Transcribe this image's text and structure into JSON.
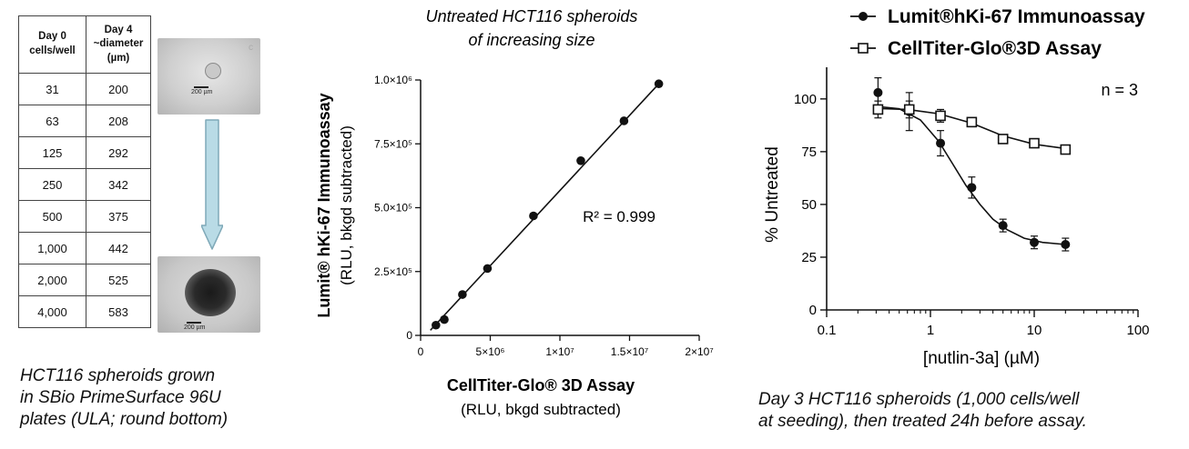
{
  "panel_a": {
    "table_headers": [
      "Day 0",
      "cells/well",
      "Day 4",
      "~diameter",
      "(µm)"
    ],
    "rows": [
      {
        "cells": "31",
        "diameter": "200"
      },
      {
        "cells": "63",
        "diameter": "208"
      },
      {
        "cells": "125",
        "diameter": "292"
      },
      {
        "cells": "250",
        "diameter": "342"
      },
      {
        "cells": "500",
        "diameter": "375"
      },
      {
        "cells": "1,000",
        "diameter": "442"
      },
      {
        "cells": "2,000",
        "diameter": "525"
      },
      {
        "cells": "4,000",
        "diameter": "583"
      }
    ],
    "scale_label_top": "200 µm",
    "scale_label_bottom": "200 µm",
    "arrow_color": "#b9dbe6",
    "caption": [
      "HCT116 spheroids grown",
      "in SBio PrimeSurface 96U",
      "plates (ULA; round bottom)"
    ]
  },
  "chart_data": [
    {
      "type": "scatter",
      "title": [
        "Untreated HCT116 spheroids",
        "of increasing size"
      ],
      "ylabel_line1": "Lumit® hKi-67 Immunoassay",
      "ylabel_line2": "(RLU, bkgd subtracted)",
      "xlabel_line1": "CellTiter-Glo® 3D Assay",
      "xlabel_line2": "(RLU, bkgd subtracted)",
      "xlim": [
        0,
        20000000
      ],
      "ylim": [
        0,
        1000000
      ],
      "xticks": [
        0,
        5000000,
        10000000,
        15000000,
        20000000
      ],
      "xtick_labels": [
        "0",
        "5×10⁶",
        "1×10⁷",
        "1.5×10⁷",
        "2×10⁷"
      ],
      "yticks": [
        0,
        250000,
        500000,
        750000,
        1000000
      ],
      "ytick_labels": [
        "0",
        "2.5×10⁵",
        "5.0×10⁵",
        "7.5×10⁵",
        "1.0×10⁶"
      ],
      "annotation": "R² = 0.999",
      "points": [
        {
          "x": 1100000,
          "y": 40000
        },
        {
          "x": 1700000,
          "y": 62000
        },
        {
          "x": 3000000,
          "y": 160000
        },
        {
          "x": 4800000,
          "y": 262000
        },
        {
          "x": 8100000,
          "y": 468000
        },
        {
          "x": 11500000,
          "y": 684000
        },
        {
          "x": 14600000,
          "y": 840000
        },
        {
          "x": 17100000,
          "y": 985000
        }
      ],
      "fit_line": [
        {
          "x": 700000,
          "y": 20000
        },
        {
          "x": 17100000,
          "y": 985000
        }
      ]
    },
    {
      "type": "line",
      "xscale": "log",
      "xlabel": "[nutlin-3a] (µM)",
      "ylabel": "% Untreated",
      "xlim": [
        0.1,
        100
      ],
      "ylim": [
        0,
        115
      ],
      "xticks": [
        0.1,
        1,
        10,
        100
      ],
      "xtick_labels": [
        "0.1",
        "1",
        "10",
        "100"
      ],
      "yticks": [
        0,
        25,
        50,
        75,
        100
      ],
      "ytick_labels": [
        "0",
        "25",
        "50",
        "75",
        "100"
      ],
      "annotation": "n = 3",
      "legend_position": "top",
      "series": [
        {
          "name": "Lumit®hKi-67 Immunoassay",
          "marker": "filled-circle",
          "x": [
            0.3125,
            0.625,
            1.25,
            2.5,
            5,
            10,
            20
          ],
          "y": [
            103,
            94,
            79,
            58,
            40,
            32,
            31
          ],
          "err": [
            7,
            9,
            6,
            5,
            3,
            3,
            3
          ],
          "curve": [
            [
              0.3,
              96.5
            ],
            [
              0.5,
              95.3
            ],
            [
              0.8,
              90
            ],
            [
              1.2,
              80
            ],
            [
              1.6,
              70
            ],
            [
              2.2,
              59
            ],
            [
              3,
              50
            ],
            [
              4,
              43
            ],
            [
              5.5,
              38
            ],
            [
              8,
              34
            ],
            [
              12,
              32
            ],
            [
              20,
              31
            ]
          ]
        },
        {
          "name": "CellTiter-Glo®3D Assay",
          "marker": "open-square",
          "x": [
            0.3125,
            0.625,
            1.25,
            2.5,
            5,
            10,
            20
          ],
          "y": [
            95,
            95,
            92,
            89,
            81,
            79,
            76
          ],
          "err": [
            4,
            4,
            3,
            2,
            2,
            1,
            1
          ],
          "curve": [
            [
              0.3,
              95.5
            ],
            [
              0.6,
              95
            ],
            [
              1.2,
              93
            ],
            [
              2.5,
              88.5
            ],
            [
              5,
              82.5
            ],
            [
              10,
              78.5
            ],
            [
              20,
              76.5
            ]
          ]
        }
      ]
    }
  ],
  "caption_c": [
    "Day 3 HCT116 spheroids (1,000 cells/well",
    "at seeding), then treated 24h before assay."
  ]
}
